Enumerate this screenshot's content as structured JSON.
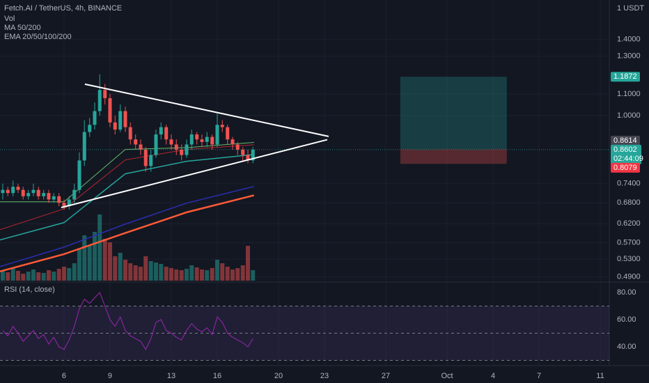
{
  "chart_data": [
    {
      "type": "candlestick",
      "title": "Fetch.AI / TetherUS, 4h, BINANCE",
      "indicators": [
        "Vol",
        "MA 50/200",
        "EMA 20/50/100/200"
      ],
      "unit": "1 USDT",
      "log_scale": true,
      "up_color": "#26a69a",
      "down_color": "#ef5350",
      "xlim": [
        1.82,
        41.59
      ],
      "xticks": [
        6,
        9,
        13,
        16,
        20,
        23,
        27,
        {
          "value": 31,
          "label": "Oct"
        },
        {
          "value": 34,
          "label": "4"
        },
        {
          "value": 37,
          "label": "7"
        },
        {
          "value": 41,
          "label": "11"
        }
      ],
      "ylim": [
        0.482,
        1.667
      ],
      "yticks": [
        {
          "value": 1.4,
          "label": "1.4000"
        },
        {
          "value": 1.3,
          "label": "1.3000"
        },
        {
          "value": 1.1,
          "label": "1.1000"
        },
        {
          "value": 1.0,
          "label": "1.0000"
        },
        {
          "value": 0.74,
          "label": "0.7400"
        },
        {
          "value": 0.68,
          "label": "0.6800"
        },
        {
          "value": 0.62,
          "label": "0.6200"
        },
        {
          "value": 0.57,
          "label": "0.5700"
        },
        {
          "value": 0.53,
          "label": "0.5300"
        },
        {
          "value": 0.49,
          "label": "0.4900"
        }
      ],
      "x": [
        2,
        2.33,
        2.67,
        3,
        3.33,
        3.67,
        4,
        4.33,
        4.67,
        5,
        5.33,
        5.67,
        6,
        6.33,
        6.67,
        7,
        7.33,
        7.67,
        8,
        8.33,
        8.67,
        9,
        9.33,
        9.67,
        10,
        10.33,
        10.67,
        11,
        11.33,
        11.67,
        12,
        12.33,
        12.67,
        13,
        13.33,
        13.67,
        14,
        14.33,
        14.67,
        15,
        15.33,
        15.67,
        16,
        16.33,
        16.67,
        17,
        17.33,
        17.67,
        18,
        18.33
      ],
      "open": [
        0.71,
        0.72,
        0.71,
        0.73,
        0.72,
        0.7,
        0.71,
        0.72,
        0.7,
        0.71,
        0.69,
        0.7,
        0.68,
        0.67,
        0.69,
        0.72,
        0.82,
        0.93,
        0.96,
        1.02,
        1.12,
        1.08,
        0.97,
        0.94,
        1.02,
        0.95,
        0.9,
        0.88,
        0.86,
        0.8,
        0.84,
        0.92,
        0.95,
        0.9,
        0.88,
        0.86,
        0.84,
        0.88,
        0.92,
        0.9,
        0.89,
        0.91,
        0.88,
        0.96,
        0.95,
        0.9,
        0.88,
        0.86,
        0.84,
        0.82
      ],
      "high": [
        0.74,
        0.73,
        0.75,
        0.74,
        0.73,
        0.72,
        0.74,
        0.73,
        0.72,
        0.72,
        0.71,
        0.71,
        0.69,
        0.7,
        0.74,
        0.85,
        0.98,
        0.99,
        1.06,
        1.2,
        1.15,
        1.1,
        1.0,
        1.05,
        1.04,
        0.97,
        0.92,
        0.9,
        0.87,
        0.86,
        0.94,
        0.97,
        0.96,
        0.92,
        0.9,
        0.88,
        0.9,
        0.94,
        0.93,
        0.92,
        0.93,
        0.92,
        1.01,
        0.98,
        0.96,
        0.91,
        0.89,
        0.87,
        0.86,
        0.87
      ],
      "low": [
        0.69,
        0.7,
        0.7,
        0.71,
        0.69,
        0.69,
        0.7,
        0.69,
        0.69,
        0.68,
        0.68,
        0.67,
        0.66,
        0.66,
        0.68,
        0.71,
        0.8,
        0.91,
        0.94,
        1.0,
        1.05,
        0.95,
        0.92,
        0.93,
        0.93,
        0.88,
        0.86,
        0.84,
        0.78,
        0.78,
        0.83,
        0.9,
        0.88,
        0.86,
        0.84,
        0.82,
        0.83,
        0.86,
        0.88,
        0.87,
        0.87,
        0.86,
        0.87,
        0.93,
        0.88,
        0.86,
        0.84,
        0.82,
        0.81,
        0.81
      ],
      "close": [
        0.72,
        0.71,
        0.73,
        0.72,
        0.7,
        0.71,
        0.72,
        0.7,
        0.71,
        0.69,
        0.7,
        0.68,
        0.67,
        0.69,
        0.72,
        0.82,
        0.93,
        0.96,
        1.02,
        1.12,
        1.08,
        0.97,
        0.94,
        1.02,
        0.95,
        0.9,
        0.88,
        0.86,
        0.8,
        0.84,
        0.92,
        0.95,
        0.9,
        0.88,
        0.86,
        0.84,
        0.88,
        0.92,
        0.9,
        0.89,
        0.91,
        0.88,
        0.96,
        0.95,
        0.9,
        0.88,
        0.86,
        0.84,
        0.82,
        0.86
      ],
      "volume": [
        1.5,
        1.2,
        1.8,
        1.4,
        1.0,
        1.3,
        1.6,
        1.2,
        1.1,
        1.5,
        1.3,
        1.7,
        2.0,
        1.8,
        2.5,
        4.5,
        6.5,
        5.0,
        7.0,
        9.5,
        6.0,
        5.5,
        3.5,
        4.0,
        3.0,
        2.5,
        2.2,
        2.0,
        3.5,
        2.8,
        2.6,
        2.4,
        2.0,
        1.8,
        1.6,
        1.5,
        1.7,
        2.2,
        1.9,
        1.6,
        1.5,
        1.8,
        3.0,
        2.5,
        2.0,
        1.6,
        1.8,
        2.2,
        5.0,
        1.5
      ],
      "vlim": [
        0,
        10
      ],
      "lines": [
        {
          "color": "#ff5a36",
          "width": 2.5,
          "x": [
            1.82,
            6,
            10,
            14,
            18.4
          ],
          "values": [
            0.502,
            0.542,
            0.595,
            0.652,
            0.703
          ]
        },
        {
          "color": "#2a2eb0",
          "width": 1.5,
          "x": [
            1.82,
            6,
            10,
            14,
            18.4
          ],
          "values": [
            0.513,
            0.559,
            0.619,
            0.679,
            0.731
          ]
        },
        {
          "color": "#26a69a",
          "width": 1.5,
          "x": [
            1.82,
            6,
            10,
            14,
            18.4
          ],
          "values": [
            0.577,
            0.623,
            0.773,
            0.817,
            0.842
          ]
        },
        {
          "color": "#b22833",
          "width": 1,
          "x": [
            1.82,
            6,
            10,
            14,
            18.4
          ],
          "values": [
            0.604,
            0.662,
            0.822,
            0.861,
            0.879
          ]
        },
        {
          "color": "#66bb6a",
          "width": 1,
          "x": [
            1.82,
            6,
            10,
            14,
            18.4
          ],
          "values": [
            0.683,
            0.683,
            0.861,
            0.868,
            0.888
          ]
        }
      ],
      "trendlines": [
        {
          "x": [
            7.36,
            23.27
          ],
          "values": [
            1.149,
            0.912
          ]
        },
        {
          "x": [
            5.82,
            23.18
          ],
          "values": [
            0.666,
            0.899
          ]
        }
      ],
      "position": {
        "x": [
          27.95,
          34.9
        ],
        "target": 1.1872,
        "entry": 0.8614,
        "stop": 0.8079
      },
      "last_price": 0.8602,
      "countdown": "02:44:09"
    },
    {
      "type": "line",
      "title": "RSI (14, close)",
      "color": "#9c27b0",
      "ylim": [
        28.7,
        85.1
      ],
      "yticks": [
        {
          "value": 80,
          "label": "80.00"
        },
        {
          "value": 60,
          "label": "60.00"
        },
        {
          "value": 40,
          "label": "40.00"
        }
      ],
      "levels": [
        70,
        50,
        30
      ],
      "values": [
        52,
        48,
        55,
        50,
        44,
        48,
        52,
        46,
        49,
        42,
        47,
        40,
        38,
        45,
        55,
        68,
        75,
        72,
        76,
        80,
        70,
        60,
        55,
        62,
        52,
        48,
        46,
        44,
        38,
        46,
        58,
        60,
        52,
        50,
        47,
        45,
        52,
        57,
        53,
        51,
        54,
        49,
        62,
        58,
        50,
        47,
        45,
        43,
        40,
        46
      ]
    }
  ]
}
